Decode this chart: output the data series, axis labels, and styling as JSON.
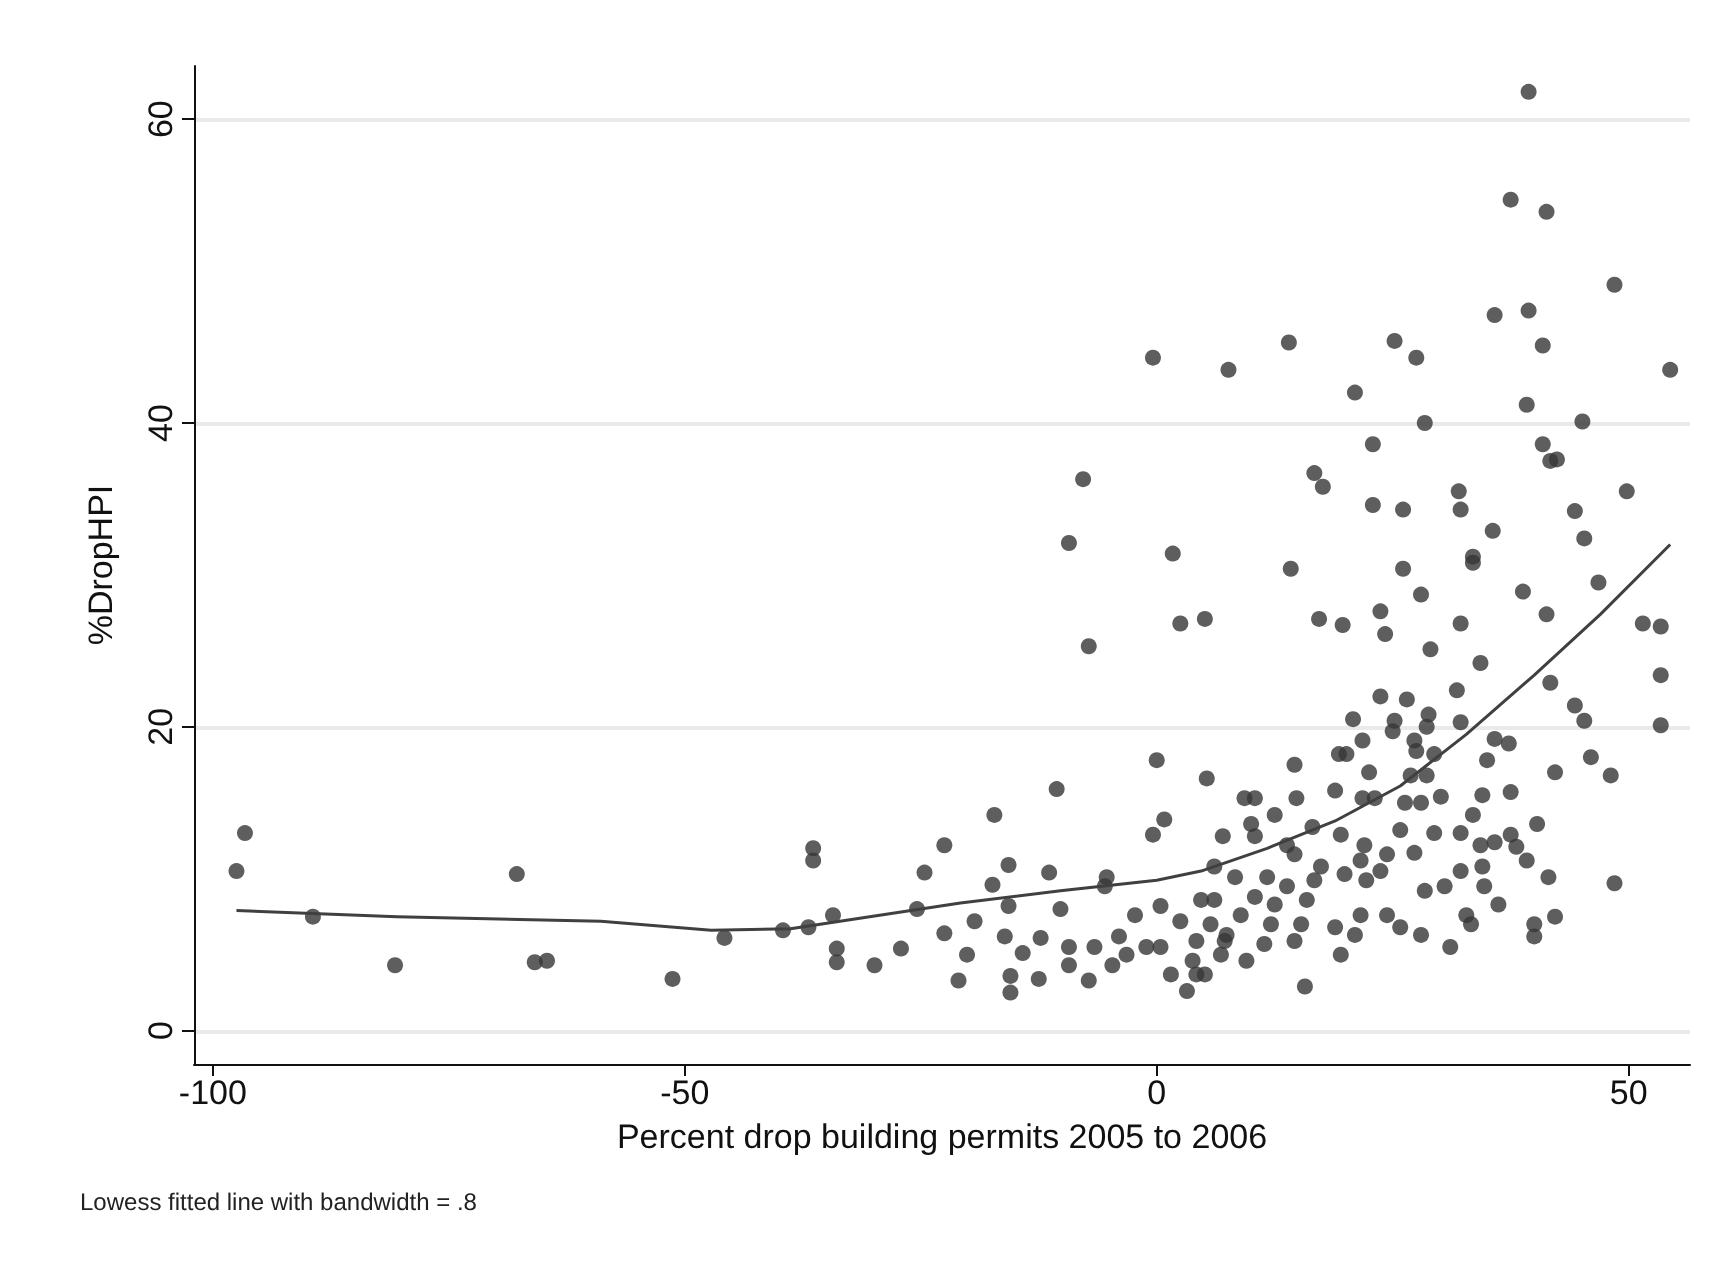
{
  "chart_data": {
    "type": "scatter",
    "xlabel": "Percent drop building permits 2005 to 2006",
    "ylabel": "%DropHPI",
    "annotations": [
      "Lowess fitted line with bandwidth = .8"
    ],
    "xlim": [
      -102,
      56.5
    ],
    "ylim": [
      -2.2,
      63.5
    ],
    "xticks": [
      -100,
      -50,
      0,
      50
    ],
    "yticks": [
      0,
      20,
      40,
      60
    ],
    "grid": "y",
    "series": [
      {
        "color": "#363636",
        "marker": "circle",
        "x": [
          -97.5,
          -96.6,
          -89.4,
          -80.7,
          -67.8,
          -65.9,
          -64.6,
          -51.3,
          -45.8,
          -39.6,
          -36.4,
          -36.4,
          -36.9,
          -34.3,
          -33.9,
          -33.9,
          -29.9,
          -27.1,
          -25.4,
          -24.6,
          -22.5,
          -22.5,
          -21.0,
          -20.1,
          -19.3,
          -17.4,
          -17.2,
          -16.1,
          -15.7,
          -15.7,
          -15.5,
          -15.5,
          -14.2,
          -12.3,
          -12.5,
          -11.4,
          -10.6,
          -10.2,
          -9.3,
          -9.3,
          -9.3,
          -7.8,
          -7.2,
          -7.2,
          -6.6,
          -5.5,
          -5.3,
          -4.7,
          -4.0,
          -3.2,
          -2.3,
          -1.1,
          -0.4,
          -0.4,
          0.0,
          0.4,
          0.4,
          0.8,
          1.5,
          1.7,
          2.5,
          2.5,
          3.2,
          3.8,
          4.2,
          4.2,
          4.7,
          5.1,
          5.1,
          5.3,
          5.7,
          6.1,
          6.1,
          6.8,
          7.0,
          7.2,
          7.4,
          7.6,
          8.3,
          8.9,
          9.3,
          9.5,
          10.0,
          10.4,
          10.4,
          10.4,
          11.4,
          11.7,
          12.1,
          12.5,
          12.5,
          13.8,
          13.8,
          14.0,
          14.2,
          14.6,
          14.6,
          14.6,
          14.8,
          15.3,
          15.7,
          15.9,
          16.5,
          16.7,
          16.7,
          17.2,
          17.4,
          17.6,
          18.9,
          18.9,
          19.3,
          19.5,
          19.5,
          19.7,
          19.9,
          20.1,
          20.8,
          21.0,
          21.0,
          21.6,
          21.6,
          21.8,
          21.8,
          22.0,
          22.2,
          22.5,
          22.9,
          22.9,
          23.1,
          23.7,
          23.7,
          23.7,
          24.2,
          24.4,
          24.4,
          25.0,
          25.2,
          25.2,
          25.8,
          25.8,
          26.1,
          26.1,
          26.3,
          26.5,
          26.9,
          27.3,
          27.3,
          27.5,
          27.5,
          28.0,
          28.0,
          28.0,
          28.4,
          28.4,
          28.6,
          28.6,
          28.8,
          29.0,
          29.4,
          29.4,
          30.1,
          30.5,
          31.1,
          31.8,
          32.0,
          32.2,
          32.2,
          32.2,
          32.2,
          32.2,
          32.8,
          33.3,
          33.5,
          33.5,
          33.5,
          34.3,
          34.3,
          34.5,
          34.5,
          34.7,
          35.0,
          35.6,
          35.8,
          35.8,
          35.8,
          36.2,
          37.3,
          37.5,
          37.5,
          37.5,
          38.1,
          38.8,
          39.2,
          39.2,
          39.4,
          39.4,
          40.0,
          40.0,
          40.3,
          40.9,
          40.9,
          41.3,
          41.3,
          41.5,
          41.7,
          41.7,
          42.2,
          42.2,
          42.4,
          44.3,
          44.3,
          45.1,
          45.3,
          45.3,
          46.0,
          46.8,
          48.1,
          48.5,
          48.5,
          49.8,
          51.5,
          53.4,
          53.4,
          53.4,
          54.4
        ],
        "values": [
          10.5,
          13.0,
          7.5,
          4.3,
          10.3,
          4.5,
          4.6,
          3.4,
          6.1,
          6.6,
          12.0,
          11.2,
          6.8,
          7.6,
          5.4,
          4.5,
          4.3,
          5.4,
          8.0,
          10.4,
          6.4,
          12.2,
          3.3,
          5.0,
          7.2,
          9.6,
          14.2,
          6.2,
          10.9,
          8.2,
          2.5,
          3.6,
          5.1,
          6.1,
          3.4,
          10.4,
          15.9,
          8.0,
          32.1,
          5.5,
          4.3,
          36.3,
          25.3,
          3.3,
          5.5,
          9.5,
          10.1,
          4.3,
          6.2,
          5.0,
          7.6,
          5.5,
          44.3,
          12.9,
          17.8,
          8.2,
          5.5,
          13.9,
          3.7,
          31.4,
          26.8,
          7.2,
          2.6,
          4.6,
          3.7,
          5.9,
          8.6,
          27.1,
          3.7,
          16.6,
          7.0,
          10.8,
          8.6,
          5.0,
          12.8,
          5.9,
          6.3,
          43.5,
          10.1,
          7.6,
          15.3,
          4.6,
          13.6,
          15.3,
          12.8,
          8.8,
          5.7,
          10.1,
          7.0,
          14.2,
          8.3,
          12.2,
          9.5,
          45.3,
          30.4,
          17.5,
          11.6,
          5.9,
          15.3,
          7.0,
          2.9,
          8.6,
          13.4,
          36.7,
          9.9,
          27.1,
          10.8,
          35.8,
          15.8,
          6.8,
          18.2,
          12.9,
          5.0,
          26.7,
          10.3,
          18.2,
          20.5,
          42.0,
          6.3,
          7.6,
          11.2,
          19.1,
          15.3,
          12.2,
          9.9,
          17.0,
          38.6,
          34.6,
          15.3,
          27.6,
          22.0,
          10.5,
          26.1,
          7.6,
          11.6,
          19.7,
          45.4,
          20.4,
          13.2,
          6.8,
          34.3,
          30.4,
          15.0,
          21.8,
          16.8,
          19.1,
          11.7,
          44.3,
          18.4,
          28.7,
          15.0,
          6.3,
          40.0,
          9.2,
          16.8,
          20.0,
          20.8,
          25.1,
          18.2,
          13.0,
          15.4,
          9.5,
          5.5,
          22.4,
          35.5,
          34.3,
          26.8,
          20.3,
          13.0,
          10.5,
          7.6,
          7.0,
          31.2,
          30.8,
          14.2,
          24.2,
          12.2,
          15.5,
          10.8,
          9.5,
          17.8,
          32.9,
          47.1,
          19.2,
          12.4,
          8.3,
          18.9,
          54.7,
          12.9,
          15.7,
          12.1,
          28.9,
          41.2,
          11.2,
          61.8,
          47.4,
          7.0,
          6.2,
          13.6,
          45.1,
          38.6,
          53.9,
          27.4,
          10.1,
          37.5,
          22.9,
          17.0,
          7.5,
          37.6,
          34.2,
          21.4,
          40.1,
          32.4,
          20.4,
          18.0,
          29.5,
          16.8,
          49.1,
          9.7,
          35.5,
          26.8,
          26.6,
          23.4,
          20.1,
          43.5
        ]
      },
      {
        "type": "line",
        "color": "#404040",
        "marker": "none",
        "line_style": "solid",
        "x": [
          -97.5,
          -80.5,
          -58.9,
          -47.2,
          -38.8,
          -20.8,
          -10.2,
          0.0,
          4.7,
          11.7,
          18.9,
          25.8,
          32.8,
          40.0,
          47.0,
          54.4
        ],
        "values": [
          7.9,
          7.5,
          7.2,
          6.6,
          6.7,
          8.4,
          9.2,
          9.9,
          10.5,
          12.0,
          13.8,
          16.1,
          19.5,
          23.4,
          27.4,
          32.0
        ]
      }
    ]
  }
}
